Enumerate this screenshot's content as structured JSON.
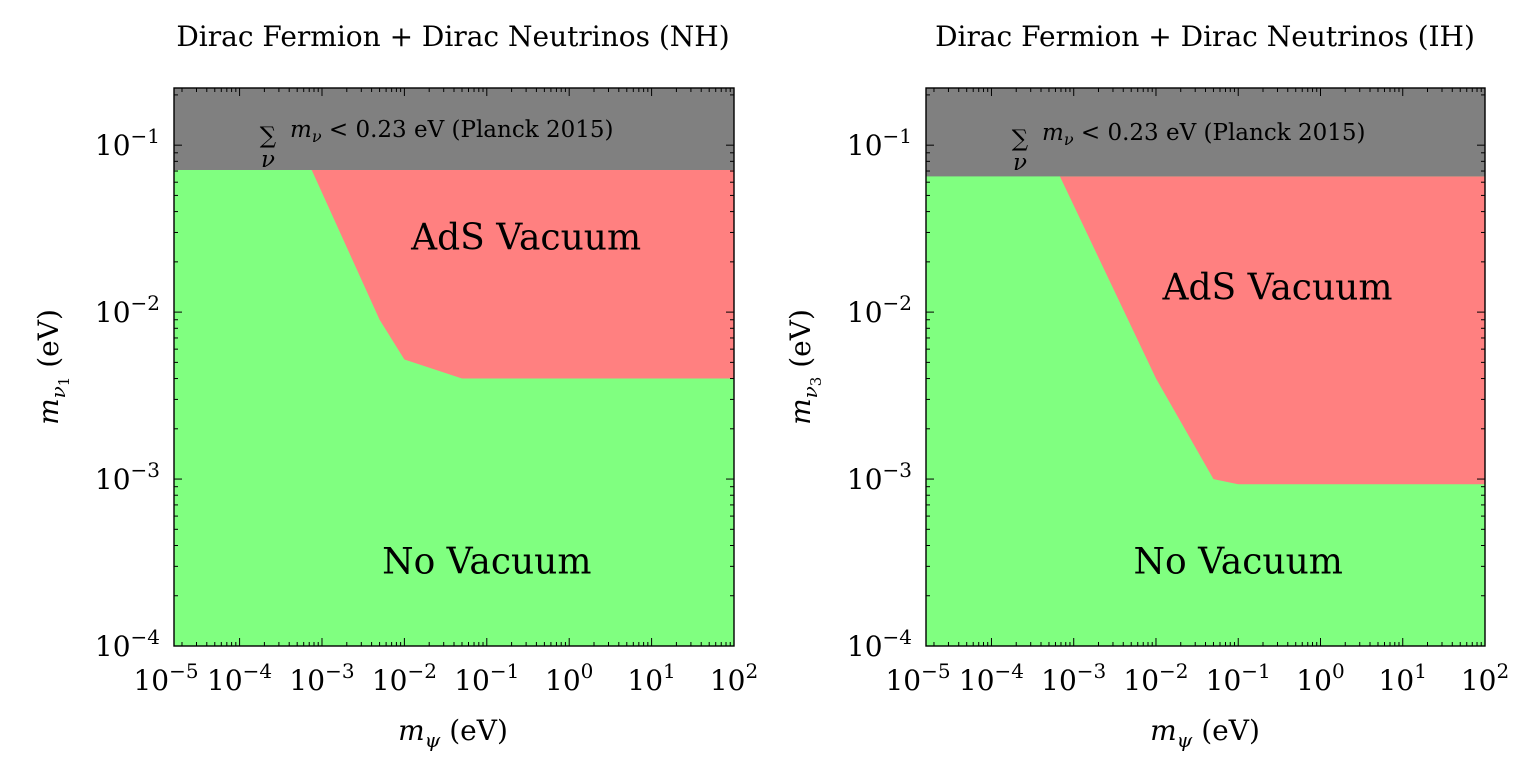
{
  "chart_data": [
    {
      "type": "area",
      "title": "Dirac Fermion + Dirac Neutrinos (NH)",
      "xlabel": "m_ψ (eV)",
      "ylabel": "m_ν1 (eV)",
      "xlabel_display": "(eV)",
      "ylabel_display": "(eV)",
      "ylabel_symbol": "m",
      "ylabel_subscript": "ν",
      "ylabel_subsubscript": "1",
      "xscale": "log",
      "yscale": "log",
      "xlim": [
        1.6e-05,
        100
      ],
      "ylim": [
        0.0001,
        0.22
      ],
      "x_ticks": [
        1e-05,
        0.0001,
        0.001,
        0.01,
        0.1,
        1,
        10,
        100
      ],
      "x_tick_exponents": [
        "−5",
        "−4",
        "−3",
        "−2",
        "−1",
        "0",
        "1",
        "2"
      ],
      "y_ticks": [
        0.0001,
        0.001,
        0.01,
        0.1
      ],
      "y_tick_exponents": [
        "−4",
        "−3",
        "−2",
        "−1"
      ],
      "tick_base": "10",
      "regions": [
        {
          "name": "Planck excluded",
          "color": "#808080",
          "ymin": 0.071,
          "label": "m_ν < 0.23 eV (Planck 2015)",
          "label_sum_symbol": "∑",
          "label_sum_sub": "ν",
          "label_text": "< 0.23 eV (Planck 2015)"
        },
        {
          "name": "No Vacuum",
          "color": "#80ff80",
          "label": "No Vacuum",
          "label_at": [
            0.1,
            0.00032
          ]
        },
        {
          "name": "AdS Vacuum",
          "color": "#ff8080",
          "label": "AdS Vacuum",
          "label_at": [
            0.3,
            0.028
          ],
          "boundary": [
            [
              0.00075,
              0.071
            ],
            [
              0.005,
              0.009
            ],
            [
              0.01,
              0.0052
            ],
            [
              0.05,
              0.004
            ],
            [
              100,
              0.004
            ]
          ]
        }
      ]
    },
    {
      "type": "area",
      "title": "Dirac Fermion + Dirac Neutrinos (IH)",
      "xlabel": "m_ψ (eV)",
      "ylabel": "m_ν3 (eV)",
      "xlabel_display": "(eV)",
      "ylabel_display": "(eV)",
      "ylabel_symbol": "m",
      "ylabel_subscript": "ν",
      "ylabel_subsubscript": "3",
      "xscale": "log",
      "yscale": "log",
      "xlim": [
        1.6e-05,
        100
      ],
      "ylim": [
        0.0001,
        0.22
      ],
      "x_ticks": [
        1e-05,
        0.0001,
        0.001,
        0.01,
        0.1,
        1,
        10,
        100
      ],
      "x_tick_exponents": [
        "−5",
        "−4",
        "−3",
        "−2",
        "−1",
        "0",
        "1",
        "2"
      ],
      "y_ticks": [
        0.0001,
        0.001,
        0.01,
        0.1
      ],
      "y_tick_exponents": [
        "−4",
        "−3",
        "−2",
        "−1"
      ],
      "tick_base": "10",
      "regions": [
        {
          "name": "Planck excluded",
          "color": "#808080",
          "ymin": 0.065,
          "label": "m_ν < 0.23 eV (Planck 2015)",
          "label_sum_symbol": "∑",
          "label_sum_sub": "ν",
          "label_text": "< 0.23 eV (Planck 2015)"
        },
        {
          "name": "No Vacuum",
          "color": "#80ff80",
          "label": "No Vacuum",
          "label_at": [
            0.1,
            0.00032
          ]
        },
        {
          "name": "AdS Vacuum",
          "color": "#ff8080",
          "label": "AdS Vacuum",
          "label_at": [
            0.3,
            0.014
          ],
          "boundary": [
            [
              0.00068,
              0.065
            ],
            [
              0.01,
              0.004
            ],
            [
              0.05,
              0.001
            ],
            [
              0.1,
              0.00093
            ],
            [
              100,
              0.00093
            ]
          ]
        }
      ]
    }
  ],
  "x_symbol": "m",
  "x_symbol_sub": "ψ"
}
